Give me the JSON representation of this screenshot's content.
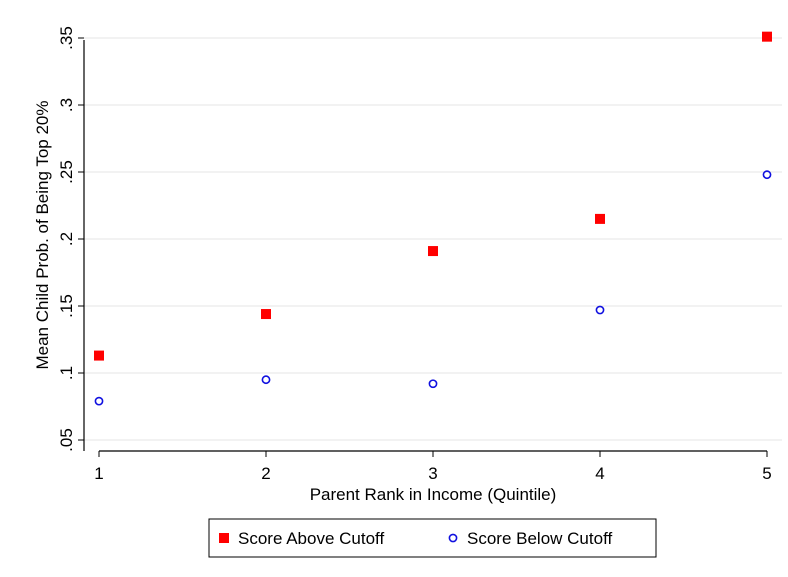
{
  "chart_data": {
    "type": "scatter",
    "title": "",
    "xlabel": "Parent Rank in Income (Quintile)",
    "ylabel": "Mean Child Prob. of Being Top 20%",
    "x": [
      1,
      2,
      3,
      4,
      5
    ],
    "x_tick_labels": [
      "1",
      "2",
      "3",
      "4",
      "5"
    ],
    "y_ticks": [
      0.05,
      0.1,
      0.15,
      0.2,
      0.25,
      0.3,
      0.35
    ],
    "y_tick_labels": [
      ".05",
      ".1",
      ".15",
      ".2",
      ".25",
      ".3",
      ".35"
    ],
    "xlim": [
      1,
      5
    ],
    "ylim": [
      0.05,
      0.35
    ],
    "grid": true,
    "legend_position": "bottom",
    "series": [
      {
        "name": "Score Above Cutoff",
        "marker": "filled-square",
        "color": "#ff0000",
        "values": [
          0.113,
          0.144,
          0.191,
          0.215,
          0.351
        ]
      },
      {
        "name": "Score Below Cutoff",
        "marker": "hollow-circle",
        "color": "#1010e0",
        "values": [
          0.079,
          0.095,
          0.092,
          0.147,
          0.248
        ]
      }
    ]
  }
}
